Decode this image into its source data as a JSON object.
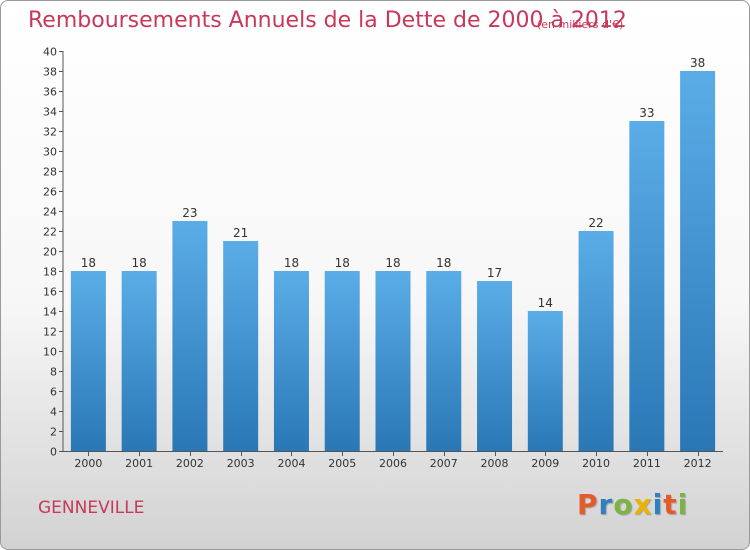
{
  "header": {
    "title": "Remboursements Annuels de la Dette de 2000 à 2012",
    "subtitle": "(en milliers d'€)"
  },
  "footer": {
    "commune": "GENNEVILLE",
    "logo_text": "Proxiti"
  },
  "colors": {
    "title": "#c8385a",
    "bar_top": "#5aade7",
    "bar_bottom": "#2a77b6",
    "logo_letters": [
      "#e55a2a",
      "#2f7fc1",
      "#7cb342",
      "#e8b400",
      "#2f7fc1",
      "#e55a2a",
      "#7cb342"
    ]
  },
  "chart_data": {
    "type": "bar",
    "categories": [
      "2000",
      "2001",
      "2002",
      "2003",
      "2004",
      "2005",
      "2006",
      "2007",
      "2008",
      "2009",
      "2010",
      "2011",
      "2012"
    ],
    "values": [
      18,
      18,
      23,
      21,
      18,
      18,
      18,
      18,
      17,
      14,
      22,
      33,
      38
    ],
    "title": "Remboursements Annuels de la Dette de 2000 à 2012",
    "xlabel": "",
    "ylabel": "",
    "ylim": [
      0,
      40
    ],
    "ytick_step": 2,
    "grid": false,
    "data_labels": true
  }
}
